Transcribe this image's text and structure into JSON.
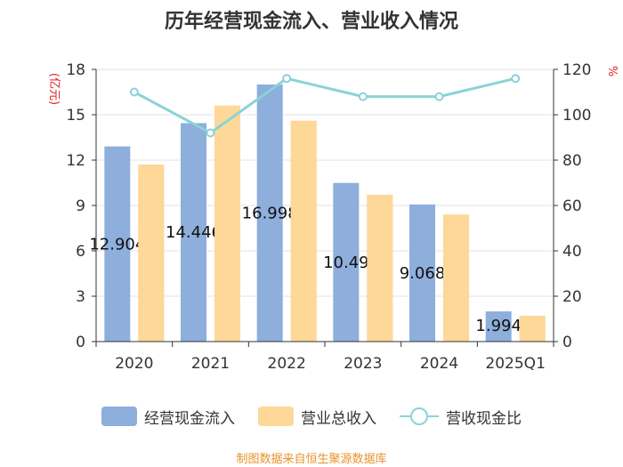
{
  "chart_data": {
    "type": "bar",
    "title": "历年经营现金流入、营业收入情况",
    "categories": [
      "2020",
      "2021",
      "2022",
      "2023",
      "2024",
      "2025Q1"
    ],
    "series": [
      {
        "name": "经营现金流入",
        "type": "bar",
        "axis": "left",
        "color": "#8eaedb",
        "values": [
          12.904,
          14.446,
          16.998,
          10.49,
          9.068,
          1.994
        ],
        "data_labels": [
          "12.904",
          "14.446",
          "16.998",
          "10.49",
          "9.068",
          "1.994"
        ]
      },
      {
        "name": "营业总收入",
        "type": "bar",
        "axis": "left",
        "color": "#fdd898",
        "values": [
          11.7,
          15.6,
          14.6,
          9.7,
          8.4,
          1.7
        ]
      },
      {
        "name": "营收现金比",
        "type": "line",
        "axis": "right",
        "color": "#8ad3d8",
        "values": [
          110,
          92,
          116,
          108,
          108,
          116
        ]
      }
    ],
    "y_left": {
      "label": "(亿元)",
      "ylim": [
        0,
        18
      ],
      "ticks": [
        "0",
        "3",
        "6",
        "9",
        "12",
        "15",
        "18"
      ]
    },
    "y_right": {
      "label": "%",
      "ylim": [
        0,
        120
      ],
      "ticks": [
        "0",
        "20",
        "40",
        "60",
        "80",
        "100",
        "120"
      ]
    },
    "grid": true,
    "legend_position": "bottom"
  },
  "source_text": "制图数据来自恒生聚源数据库"
}
